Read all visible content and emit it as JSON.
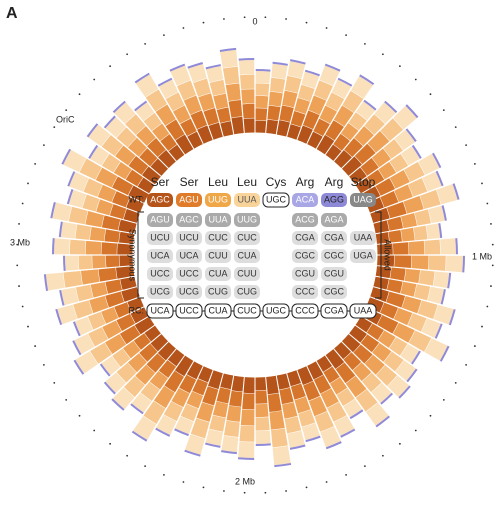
{
  "panel": "A",
  "axis_labels": {
    "top": "0",
    "left": "3 Mb",
    "right": "1 Mb",
    "bottom": "2 Mb",
    "oric": "OriC"
  },
  "ring": {
    "segments": [
      62,
      70,
      75,
      68,
      80,
      72,
      85,
      66,
      78,
      90,
      74,
      69,
      82,
      77,
      88,
      71,
      64,
      79,
      86,
      73,
      70,
      84,
      76,
      91,
      68,
      75,
      80,
      72,
      87,
      66,
      78,
      83,
      70,
      74,
      89,
      67,
      81,
      76,
      72,
      85,
      69,
      77,
      92,
      71,
      80,
      74,
      66,
      86,
      78,
      70,
      83,
      75,
      88,
      68,
      79,
      73,
      84,
      71,
      76,
      90,
      69,
      82,
      74,
      78,
      65,
      87,
      72,
      80,
      76,
      70,
      84,
      73
    ]
  },
  "amino_acids": [
    "Ser",
    "Ser",
    "Leu",
    "Leu",
    "Cys",
    "Arg",
    "Arg",
    "Stop"
  ],
  "wt": {
    "label": "WT:",
    "codons": [
      "AGC",
      "AGU",
      "UUG",
      "UUA",
      "UGC",
      "ACA",
      "AGG",
      "UAG"
    ]
  },
  "synonymous": {
    "label": "Synonymous",
    "rows": [
      [
        "AGU",
        "AGC",
        "UUA",
        "UUG"
      ],
      [
        "UCU",
        "UCU",
        "CUC",
        "CUC"
      ],
      [
        "UCA",
        "UCA",
        "CUU",
        "CUA"
      ],
      [
        "UCC",
        "UCC",
        "CUA",
        "CUU"
      ],
      [
        "UCG",
        "UCG",
        "CUG",
        "CUG"
      ]
    ]
  },
  "allowed": {
    "label": "Allowed",
    "rows": [
      [
        "ACG",
        "AGA",
        ""
      ],
      [
        "CGA",
        "CGA",
        "UAA"
      ],
      [
        "CGC",
        "CGC",
        "UGA"
      ],
      [
        "CGU",
        "CGU",
        ""
      ],
      [
        "CCC",
        "CGC",
        ""
      ]
    ]
  },
  "rc": {
    "label": "RC:",
    "codons": [
      "UCA",
      "UCC",
      "CUA",
      "CUC",
      "UGC",
      "CCC",
      "CGA",
      "UAA"
    ]
  }
}
